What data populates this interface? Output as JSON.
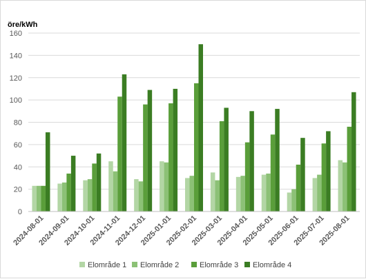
{
  "chart_data": {
    "type": "bar",
    "ylabel": "öre/kWh",
    "ylim": [
      0,
      160
    ],
    "yticks": [
      0,
      20,
      40,
      60,
      80,
      100,
      120,
      140,
      160
    ],
    "grid": true,
    "legend_position": "bottom",
    "categories": [
      "2024-08-01",
      "2024-09-01",
      "2024-10-01",
      "2024-11-01",
      "2024-12-01",
      "2025-01-01",
      "2025-02-01",
      "2025-03-01",
      "2025-04-01",
      "2025-05-01",
      "2025-06-01",
      "2025-07-01",
      "2025-08-01"
    ],
    "series": [
      {
        "name": "Elområde 1",
        "color": "#b3d6a5",
        "values": [
          23,
          25,
          28,
          45,
          29,
          45,
          30,
          35,
          31,
          33,
          17,
          30,
          46
        ]
      },
      {
        "name": "Elområde 2",
        "color": "#8cc176",
        "values": [
          23,
          26,
          29,
          36,
          27,
          44,
          32,
          28,
          32,
          34,
          20,
          33,
          44
        ]
      },
      {
        "name": "Elområde 3",
        "color": "#5a9e3a",
        "values": [
          23,
          34,
          43,
          103,
          96,
          97,
          115,
          81,
          62,
          69,
          42,
          61,
          76
        ]
      },
      {
        "name": "Elområde 4",
        "color": "#3b7d23",
        "values": [
          71,
          50,
          52,
          123,
          109,
          110,
          150,
          93,
          90,
          92,
          66,
          72,
          107
        ]
      }
    ]
  }
}
